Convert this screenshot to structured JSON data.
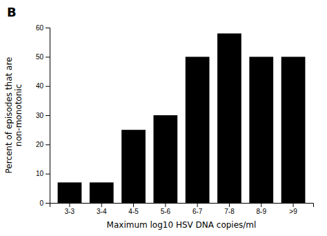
{
  "chart_data": {
    "type": "bar",
    "title": "B",
    "categories": [
      "3-3",
      "3-4",
      "4-5",
      "5-6",
      "6-7",
      "7-8",
      "8-9",
      ">9"
    ],
    "values": [
      7,
      7,
      25,
      30,
      50,
      58,
      50,
      50
    ],
    "color": "#000000",
    "xlabel": "Maximum log10 HSV DNA copies/ml",
    "ylabel": "Percent of episodes that are\nnon-monotonic",
    "ylim": [
      0,
      60
    ],
    "yticks": [
      0,
      10,
      20,
      30,
      40,
      50,
      60
    ]
  }
}
